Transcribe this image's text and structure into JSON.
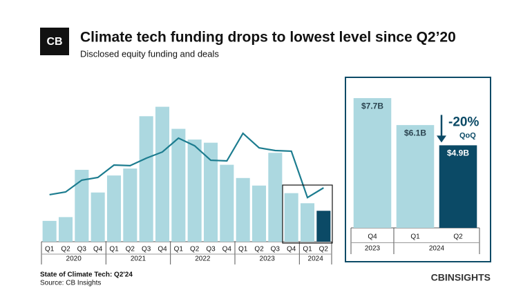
{
  "logo": "CB",
  "brand": "CBINSIGHTS",
  "footer": {
    "report": "State of Climate Tech: Q2'24",
    "source": "Source: CB Insights"
  },
  "chart_data": [
    {
      "type": "bar",
      "title": "Climate tech funding drops to lowest level since Q2’20",
      "subtitle": "Disclosed equity funding and deals",
      "categories": [
        "Q1",
        "Q2",
        "Q3",
        "Q4",
        "Q1",
        "Q2",
        "Q3",
        "Q4",
        "Q1",
        "Q2",
        "Q3",
        "Q4",
        "Q1",
        "Q2",
        "Q3",
        "Q4",
        "Q1",
        "Q2"
      ],
      "groups": [
        "2020",
        "2021",
        "2022",
        "2023",
        "2024"
      ],
      "ylim": [
        0,
        23
      ],
      "y2lim": [
        0,
        700
      ],
      "series": [
        {
          "type": "bar",
          "values": [
            3.3,
            3.9,
            11.4,
            7.8,
            10.5,
            11.6,
            19.9,
            21.4,
            17.9,
            16.2,
            15.7,
            12.2,
            10.1,
            8.9,
            14.1,
            7.7,
            6.1,
            4.9
          ],
          "colors": [
            "#acd8e0",
            "#acd8e0",
            "#acd8e0",
            "#acd8e0",
            "#acd8e0",
            "#acd8e0",
            "#acd8e0",
            "#acd8e0",
            "#acd8e0",
            "#acd8e0",
            "#acd8e0",
            "#acd8e0",
            "#acd8e0",
            "#acd8e0",
            "#acd8e0",
            "#acd8e0",
            "#acd8e0",
            "#0b4a66"
          ]
        },
        {
          "type": "line",
          "axis": "y2",
          "color": "#1c7c8f",
          "values": [
            227,
            240,
            297,
            310,
            370,
            367,
            403,
            433,
            500,
            463,
            393,
            390,
            523,
            453,
            440,
            437,
            213,
            260
          ]
        }
      ]
    },
    {
      "type": "bar",
      "categories": [
        "Q4",
        "Q1",
        "Q2"
      ],
      "groups": [
        "2023",
        "2024"
      ],
      "values": [
        7.7,
        6.1,
        4.9
      ],
      "value_labels": [
        "$7.7B",
        "$6.1B",
        "$4.9B"
      ],
      "colors": [
        "#acd8e0",
        "#acd8e0",
        "#0b4a66"
      ],
      "ylim": [
        0,
        8.4
      ],
      "annotation": {
        "text": "-20%",
        "sub": "QoQ"
      }
    }
  ]
}
